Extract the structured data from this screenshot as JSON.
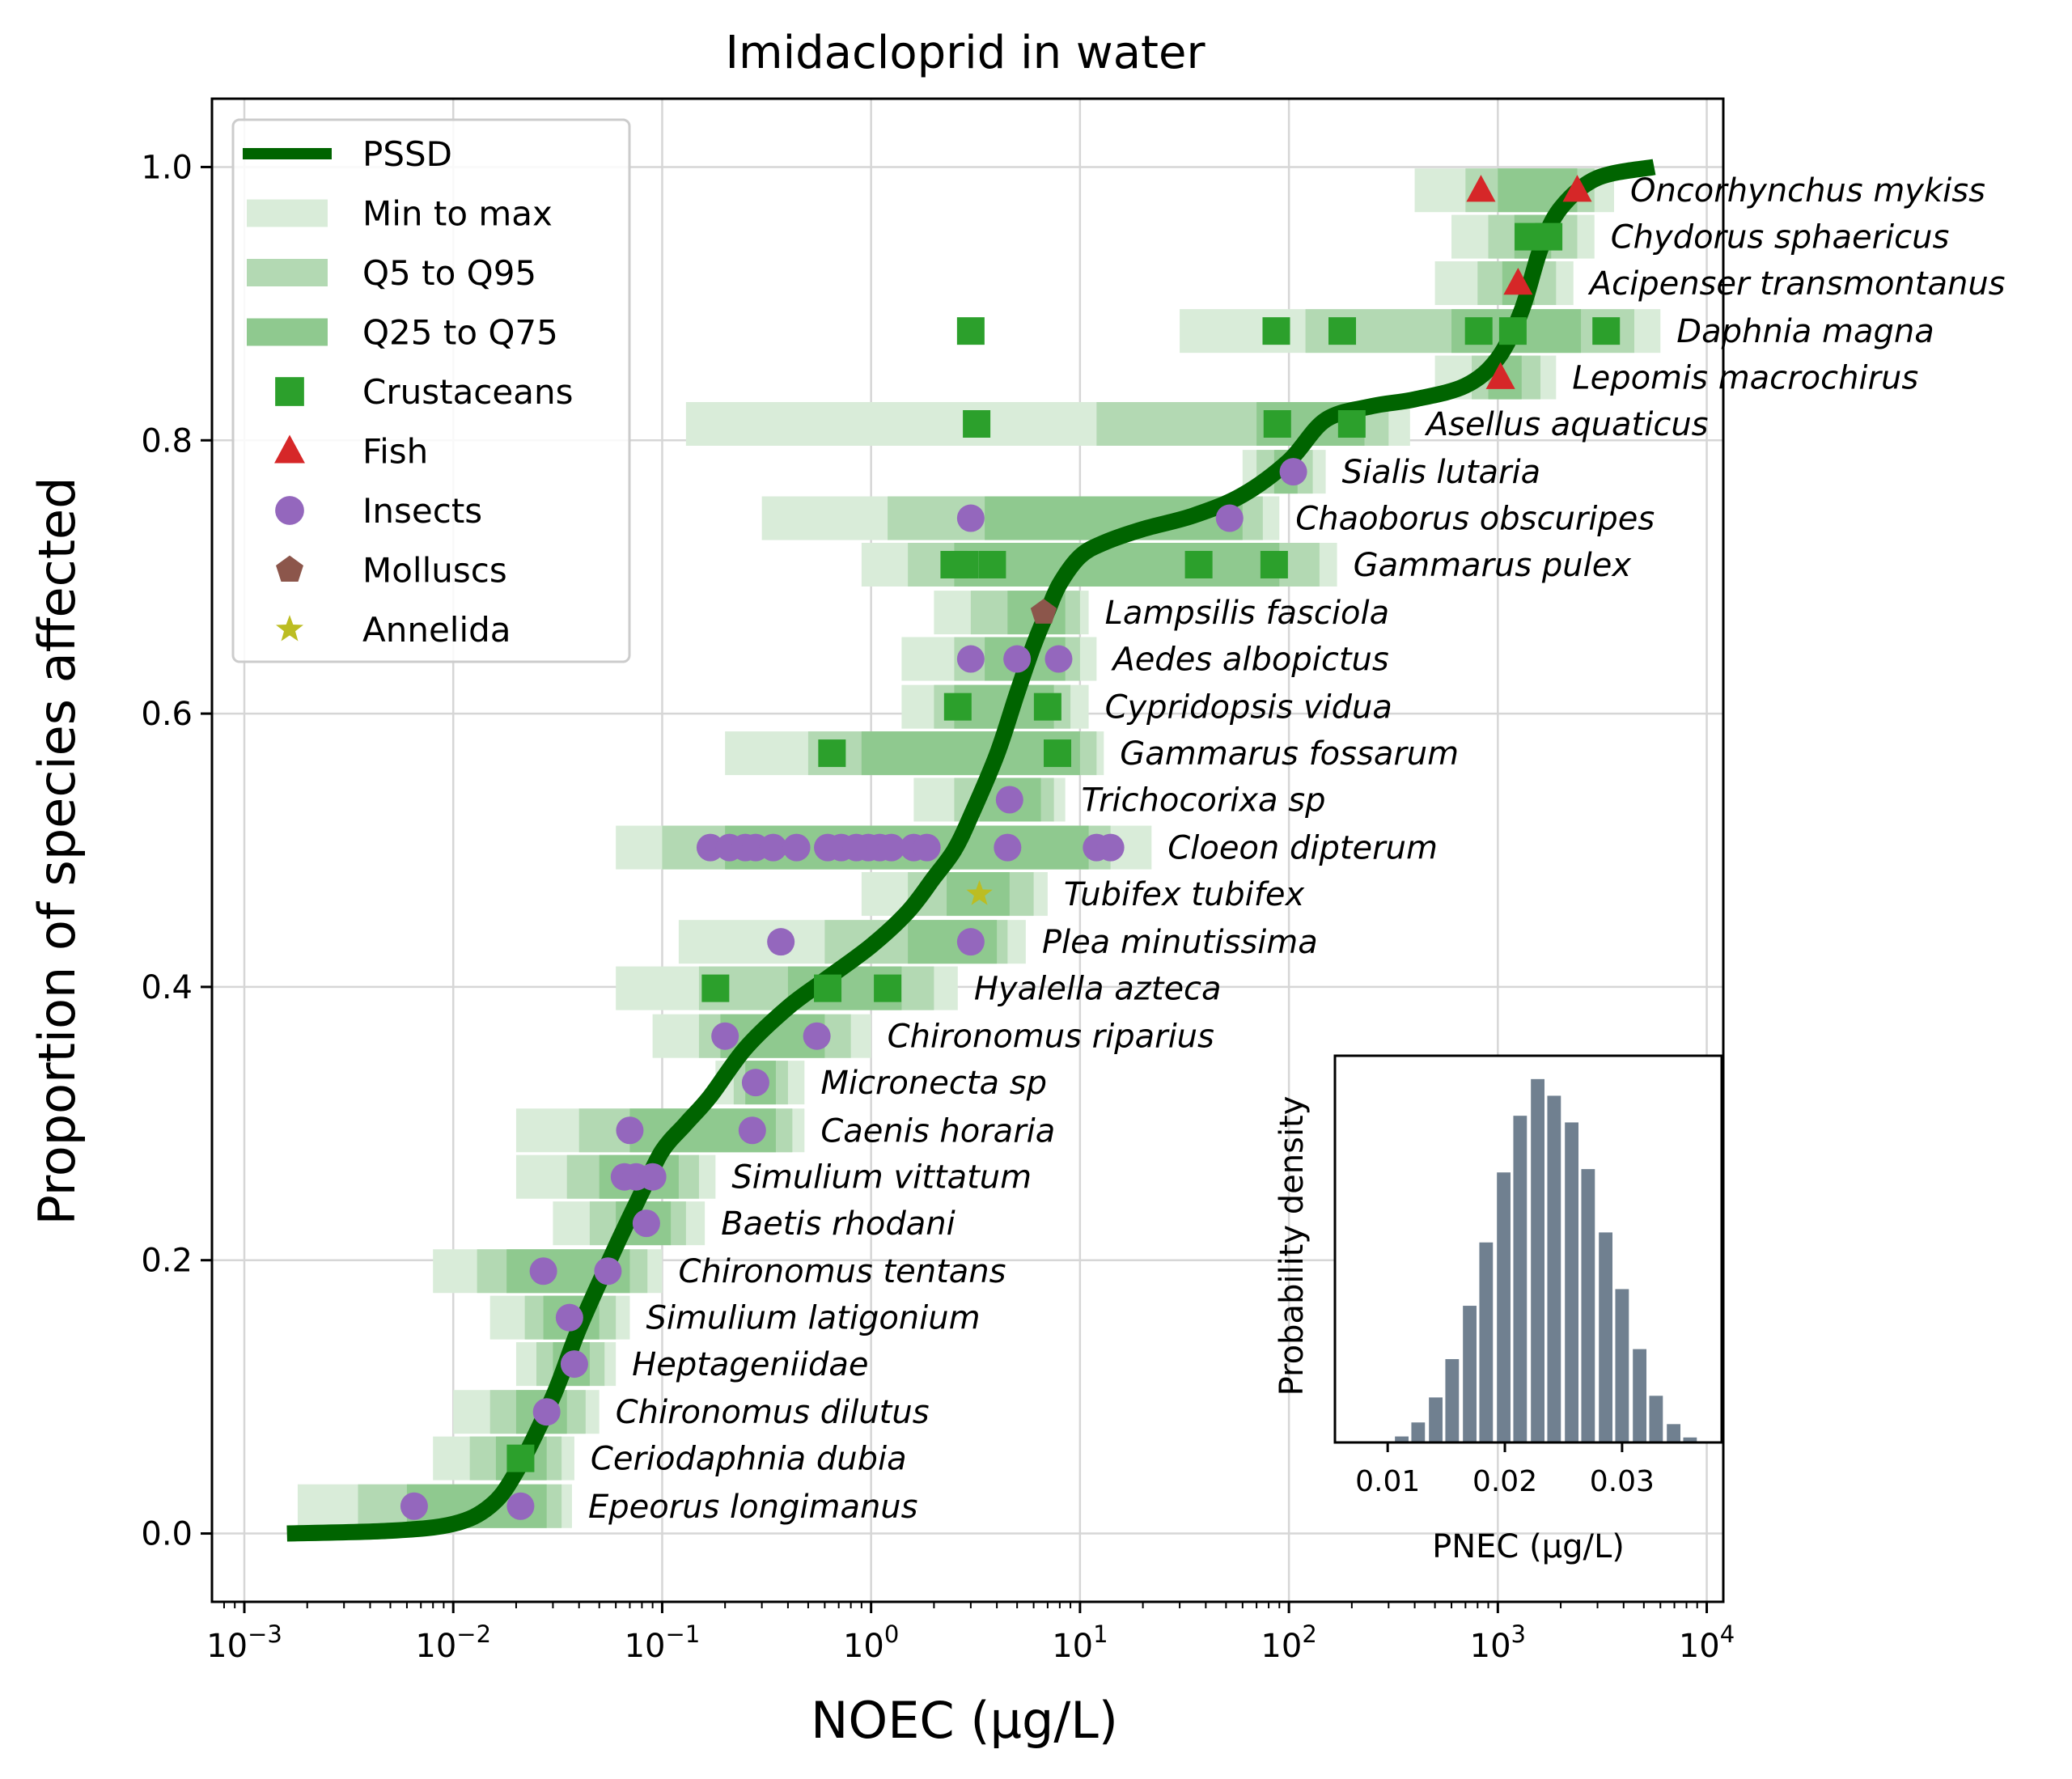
{
  "chart_data": [
    {
      "type": "scatter",
      "title": "Imidacloprid in water",
      "xlabel": "NOEC (µg/L)",
      "ylabel": "Proportion of species affected",
      "xscale": "log",
      "xlim": [
        0.0007,
        12000
      ],
      "ylim": [
        -0.05,
        1.05
      ],
      "grid": true,
      "legend_placement": "top-left",
      "x_ticks": [
        {
          "value": 0.001,
          "base": "10",
          "exp": "−3"
        },
        {
          "value": 0.01,
          "base": "10",
          "exp": "−2"
        },
        {
          "value": 0.1,
          "base": "10",
          "exp": "−1"
        },
        {
          "value": 1,
          "base": "10",
          "exp": "0"
        },
        {
          "value": 10,
          "base": "10",
          "exp": "1"
        },
        {
          "value": 100,
          "base": "10",
          "exp": "2"
        },
        {
          "value": 1000,
          "base": "10",
          "exp": "3"
        },
        {
          "value": 10000,
          "base": "10",
          "exp": "4"
        }
      ],
      "y_ticks": [
        {
          "value": 0.0,
          "label": "0.0"
        },
        {
          "value": 0.2,
          "label": "0.2"
        },
        {
          "value": 0.4,
          "label": "0.4"
        },
        {
          "value": 0.6,
          "label": "0.6"
        },
        {
          "value": 0.8,
          "label": "0.8"
        },
        {
          "value": 1.0,
          "label": "1.0"
        }
      ],
      "legend": [
        {
          "label": "PSSD",
          "kind": "line",
          "color": "#006400"
        },
        {
          "label": "Min to max",
          "kind": "band",
          "color": "#d9ecd9"
        },
        {
          "label": "Q5 to Q95",
          "kind": "band",
          "color": "#b3d9b3"
        },
        {
          "label": "Q25 to Q75",
          "kind": "band",
          "color": "#8fc98f"
        },
        {
          "label": "Crustaceans",
          "kind": "square",
          "color": "#2ca02c"
        },
        {
          "label": "Fish",
          "kind": "triangle",
          "color": "#d62728"
        },
        {
          "label": "Insects",
          "kind": "circle",
          "color": "#9467bd"
        },
        {
          "label": "Molluscs",
          "kind": "pentagon",
          "color": "#8c564b"
        },
        {
          "label": "Annelida",
          "kind": "star",
          "color": "#bcbd22"
        }
      ],
      "pssd_curve": [
        [
          0.0016,
          0.0
        ],
        [
          0.005,
          0.002
        ],
        [
          0.01,
          0.007
        ],
        [
          0.015,
          0.02
        ],
        [
          0.02,
          0.045
        ],
        [
          0.03,
          0.1
        ],
        [
          0.04,
          0.15
        ],
        [
          0.06,
          0.21
        ],
        [
          0.08,
          0.25
        ],
        [
          0.1,
          0.28
        ],
        [
          0.13,
          0.3
        ],
        [
          0.17,
          0.32
        ],
        [
          0.25,
          0.355
        ],
        [
          0.4,
          0.385
        ],
        [
          0.6,
          0.405
        ],
        [
          1.0,
          0.43
        ],
        [
          1.5,
          0.455
        ],
        [
          2.0,
          0.48
        ],
        [
          2.5,
          0.5
        ],
        [
          3.0,
          0.525
        ],
        [
          4.0,
          0.57
        ],
        [
          5.0,
          0.615
        ],
        [
          6.0,
          0.65
        ],
        [
          7.0,
          0.675
        ],
        [
          8.0,
          0.695
        ],
        [
          10.0,
          0.715
        ],
        [
          13.0,
          0.725
        ],
        [
          20.0,
          0.735
        ],
        [
          35.0,
          0.745
        ],
        [
          60.0,
          0.76
        ],
        [
          100.0,
          0.785
        ],
        [
          150.0,
          0.815
        ],
        [
          250.0,
          0.825
        ],
        [
          400.0,
          0.83
        ],
        [
          700.0,
          0.84
        ],
        [
          1000.0,
          0.86
        ],
        [
          1300.0,
          0.895
        ],
        [
          1600.0,
          0.94
        ],
        [
          2000.0,
          0.97
        ],
        [
          3000.0,
          0.992
        ],
        [
          5600.0,
          1.0
        ]
      ],
      "species": [
        {
          "name": "Oncorhynchus mykiss",
          "y": 0.983,
          "group": "Fish",
          "min": 400,
          "q5": 700,
          "q25": 1000,
          "q75": 2400,
          "q95": 2900,
          "max": 3600,
          "points": [
            830,
            2400
          ]
        },
        {
          "name": "Chydorus sphaericus",
          "y": 0.949,
          "group": "Crustaceans",
          "min": 600,
          "q5": 900,
          "q25": 1200,
          "q75": 1800,
          "q95": 2400,
          "max": 2900,
          "points": [
            1400,
            1750
          ]
        },
        {
          "name": "Acipenser transmontanus",
          "y": 0.915,
          "group": "Fish",
          "min": 500,
          "q5": 800,
          "q25": 1050,
          "q75": 1500,
          "q95": 1900,
          "max": 2300,
          "points": [
            1250
          ]
        },
        {
          "name": "Daphnia magna",
          "y": 0.88,
          "group": "Crustaceans",
          "min": 30,
          "q5": 120,
          "q25": 600,
          "q75": 2500,
          "q95": 4500,
          "max": 6000,
          "points": [
            3,
            87,
            180,
            810,
            1180,
            3300
          ]
        },
        {
          "name": "Lepomis macrochirus",
          "y": 0.846,
          "group": "Fish",
          "min": 500,
          "q5": 750,
          "q25": 900,
          "q75": 1300,
          "q95": 1600,
          "max": 1900,
          "points": [
            1030
          ]
        },
        {
          "name": "Asellus aquaticus",
          "y": 0.812,
          "group": "Crustaceans",
          "min": 0.13,
          "q5": 12,
          "q25": 70,
          "q75": 230,
          "q95": 300,
          "max": 380,
          "points": [
            3.2,
            88,
            200
          ]
        },
        {
          "name": "Sialis lutaria",
          "y": 0.777,
          "group": "Insects",
          "min": 60,
          "q5": 70,
          "q25": 85,
          "q75": 110,
          "q95": 130,
          "max": 150,
          "points": [
            105
          ]
        },
        {
          "name": "Chaoborus obscuripes",
          "y": 0.743,
          "group": "Insects",
          "min": 0.3,
          "q5": 1.2,
          "q25": 3.5,
          "q75": 60,
          "q95": 75,
          "max": 90,
          "points": [
            3,
            52
          ]
        },
        {
          "name": "Gammarus pulex",
          "y": 0.709,
          "group": "Crustaceans",
          "min": 0.9,
          "q5": 1.5,
          "q25": 2.5,
          "q75": 90,
          "q95": 140,
          "max": 170,
          "points": [
            2.5,
            2.8,
            3.8,
            37,
            85
          ]
        },
        {
          "name": "Lampsilis fasciola",
          "y": 0.674,
          "group": "Molluscs",
          "min": 2.0,
          "q5": 3.0,
          "q25": 4.5,
          "q75": 8.5,
          "q95": 10,
          "max": 11,
          "points": [
            6.7
          ]
        },
        {
          "name": "Aedes albopictus",
          "y": 0.64,
          "group": "Insects",
          "min": 1.4,
          "q5": 2.5,
          "q25": 3.5,
          "q75": 8.5,
          "q95": 10,
          "max": 12,
          "points": [
            3.0,
            5.0,
            7.9
          ]
        },
        {
          "name": "Cypridopsis vidua",
          "y": 0.605,
          "group": "Crustaceans",
          "min": 1.4,
          "q5": 2.0,
          "q25": 2.5,
          "q75": 7.5,
          "q95": 9,
          "max": 11,
          "points": [
            2.6,
            7.0
          ]
        },
        {
          "name": "Gammarus fossarum",
          "y": 0.571,
          "group": "Crustaceans",
          "min": 0.2,
          "q5": 0.5,
          "q25": 0.9,
          "q75": 10,
          "q95": 12,
          "max": 13,
          "points": [
            0.65,
            7.8
          ]
        },
        {
          "name": "Trichocorixa sp",
          "y": 0.537,
          "group": "Insects",
          "min": 1.6,
          "q5": 2.5,
          "q25": 3.3,
          "q75": 6.5,
          "q95": 7.5,
          "max": 8.5,
          "points": [
            4.6
          ]
        },
        {
          "name": "Cloeon dipterum",
          "y": 0.502,
          "group": "Insects",
          "min": 0.06,
          "q5": 0.1,
          "q25": 0.2,
          "q75": 11,
          "q95": 14,
          "max": 22,
          "points": [
            0.17,
            0.21,
            0.25,
            0.28,
            0.34,
            0.44,
            0.62,
            0.72,
            0.85,
            0.97,
            1.1,
            1.25,
            1.6,
            1.85,
            4.5,
            12,
            14
          ]
        },
        {
          "name": "Tubifex tubifex",
          "y": 0.468,
          "group": "Annelida",
          "min": 0.9,
          "q5": 1.5,
          "q25": 2.3,
          "q75": 4.6,
          "q95": 6,
          "max": 7,
          "points": [
            3.3
          ]
        },
        {
          "name": "Plea minutissima",
          "y": 0.433,
          "group": "Insects",
          "min": 0.12,
          "q5": 0.6,
          "q25": 1.5,
          "q75": 4.0,
          "q95": 4.5,
          "max": 5.5,
          "points": [
            0.37,
            3.0
          ]
        },
        {
          "name": "Hyalella azteca",
          "y": 0.399,
          "group": "Crustaceans",
          "min": 0.06,
          "q5": 0.15,
          "q25": 0.4,
          "q75": 1.4,
          "q95": 2.0,
          "max": 2.6,
          "points": [
            0.18,
            0.62,
            1.2
          ]
        },
        {
          "name": "Chironomus riparius",
          "y": 0.364,
          "group": "Insects",
          "min": 0.09,
          "q5": 0.15,
          "q25": 0.19,
          "q75": 0.6,
          "q95": 0.8,
          "max": 1.0,
          "points": [
            0.2,
            0.55
          ]
        },
        {
          "name": "Micronecta sp",
          "y": 0.33,
          "group": "Insects",
          "min": 0.18,
          "q5": 0.22,
          "q25": 0.25,
          "q75": 0.35,
          "q95": 0.4,
          "max": 0.48,
          "points": [
            0.28
          ]
        },
        {
          "name": "Caenis horaria",
          "y": 0.295,
          "group": "Insects",
          "min": 0.02,
          "q5": 0.04,
          "q25": 0.07,
          "q75": 0.35,
          "q95": 0.42,
          "max": 0.48,
          "points": [
            0.07,
            0.27
          ]
        },
        {
          "name": "Simulium vittatum",
          "y": 0.261,
          "group": "Insects",
          "min": 0.02,
          "q5": 0.035,
          "q25": 0.05,
          "q75": 0.12,
          "q95": 0.15,
          "max": 0.18,
          "points": [
            0.066,
            0.075,
            0.09
          ]
        },
        {
          "name": "Baetis rhodani",
          "y": 0.227,
          "group": "Insects",
          "min": 0.03,
          "q5": 0.045,
          "q25": 0.06,
          "q75": 0.11,
          "q95": 0.13,
          "max": 0.16,
          "points": [
            0.084
          ]
        },
        {
          "name": "Chironomus tentans",
          "y": 0.192,
          "group": "Insects",
          "min": 0.008,
          "q5": 0.013,
          "q25": 0.018,
          "q75": 0.07,
          "q95": 0.085,
          "max": 0.1,
          "points": [
            0.027,
            0.055
          ]
        },
        {
          "name": "Simulium latigonium",
          "y": 0.158,
          "group": "Insects",
          "min": 0.015,
          "q5": 0.022,
          "q25": 0.027,
          "q75": 0.05,
          "q95": 0.06,
          "max": 0.07,
          "points": [
            0.036
          ]
        },
        {
          "name": "Heptageniidae",
          "y": 0.124,
          "group": "Insects",
          "min": 0.02,
          "q5": 0.025,
          "q25": 0.03,
          "q75": 0.045,
          "q95": 0.053,
          "max": 0.06,
          "points": [
            0.038
          ]
        },
        {
          "name": "Chironomus dilutus",
          "y": 0.089,
          "group": "Insects",
          "min": 0.01,
          "q5": 0.015,
          "q25": 0.02,
          "q75": 0.035,
          "q95": 0.043,
          "max": 0.05,
          "points": [
            0.028
          ]
        },
        {
          "name": "Ceriodaphnia dubia",
          "y": 0.055,
          "group": "Crustaceans",
          "min": 0.008,
          "q5": 0.012,
          "q25": 0.016,
          "q75": 0.028,
          "q95": 0.033,
          "max": 0.038,
          "points": [
            0.021
          ]
        },
        {
          "name": "Epeorus longimanus",
          "y": 0.02,
          "group": "Insects",
          "min": 0.0018,
          "q5": 0.0035,
          "q25": 0.006,
          "q75": 0.028,
          "q95": 0.033,
          "max": 0.037,
          "points": [
            0.0065,
            0.021
          ]
        }
      ]
    },
    {
      "type": "bar",
      "xlabel": "PNEC (µg/L)",
      "ylabel": "Probability density",
      "xlim": [
        0.0055,
        0.0385
      ],
      "x_ticks": [
        {
          "value": 0.01,
          "label": "0.01"
        },
        {
          "value": 0.02,
          "label": "0.02"
        },
        {
          "value": 0.03,
          "label": "0.03"
        }
      ],
      "bin_width": 0.00145,
      "bins": [
        0.0097,
        0.0112,
        0.0126,
        0.0141,
        0.0155,
        0.017,
        0.0184,
        0.0199,
        0.0213,
        0.0228,
        0.0242,
        0.0257,
        0.0271,
        0.0286,
        0.03,
        0.0315,
        0.0329,
        0.0344,
        0.0358
      ],
      "values": [
        0.2,
        1.8,
        6.0,
        13.5,
        25.0,
        41.0,
        60.0,
        81.0,
        98.0,
        109.0,
        104.0,
        96.0,
        82.0,
        63.0,
        46.0,
        28.0,
        14.0,
        5.5,
        1.5
      ],
      "ylim": [
        0,
        116
      ],
      "bar_color": "#708090"
    }
  ]
}
